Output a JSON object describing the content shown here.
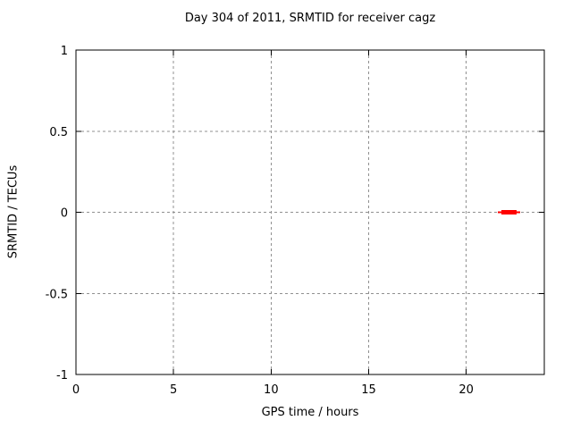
{
  "title": "Day 304 of 2011, SRMTID for receiver cagz",
  "colors": {
    "background": "#ffffff",
    "border": "#000000",
    "grid": "#909090",
    "text": "#000000",
    "series": "#ff0000"
  },
  "chart_data": {
    "type": "line",
    "title": "Day 304 of 2011, SRMTID for receiver cagz",
    "xlabel": "GPS time / hours",
    "ylabel": "SRMTID / TECUs",
    "xlim": [
      0,
      24
    ],
    "ylim": [
      -1,
      1
    ],
    "x_ticks": [
      0,
      5,
      10,
      15,
      20
    ],
    "x_tick_labels": [
      "0",
      "5",
      "10",
      "15",
      "20"
    ],
    "y_ticks": [
      -1,
      -0.5,
      0,
      0.5,
      1
    ],
    "y_tick_labels": [
      "-1",
      "-0.5",
      "0",
      "0.5",
      "1"
    ],
    "grid": true,
    "legend": "none",
    "series": [
      {
        "name": "SRMTID",
        "color": "#ff0000",
        "style": "horizontal-segments",
        "segments": [
          {
            "y": 0,
            "x_start": 21.62,
            "x_end": 22.76,
            "thickness": "thin"
          },
          {
            "y": 0,
            "x_start": 21.8,
            "x_end": 22.58,
            "thickness": "thick"
          }
        ]
      }
    ]
  }
}
